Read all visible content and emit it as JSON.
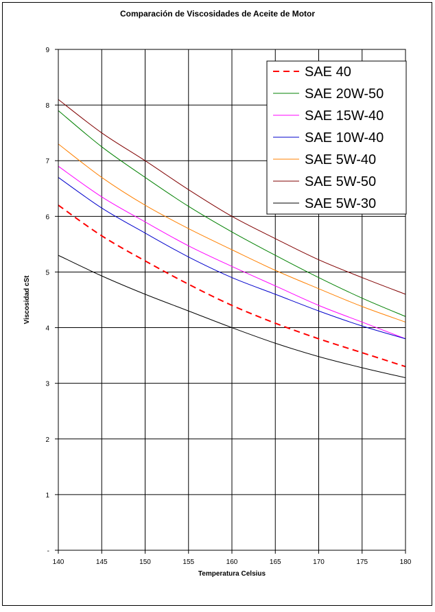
{
  "chart_data": {
    "type": "line",
    "title": "Comparación de Viscosidades de Aceite de Motor",
    "xlabel": "Temperatura Celsius",
    "ylabel": "Viscosidad cSt",
    "xlim": [
      140,
      180
    ],
    "ylim": [
      0,
      9
    ],
    "x_ticks": [
      "140",
      "145",
      "150",
      "155",
      "160",
      "165",
      "170",
      "175",
      "180"
    ],
    "y_ticks": [
      "-",
      "1",
      "2",
      "3",
      "4",
      "5",
      "6",
      "7",
      "8",
      "9"
    ],
    "grid": true,
    "legend_position": "top-right",
    "x": [
      140,
      145,
      150,
      155,
      160,
      165,
      170,
      175,
      180
    ],
    "series": [
      {
        "name": "SAE 40",
        "color": "#ff0000",
        "dashed": true,
        "values": [
          6.2,
          5.65,
          5.2,
          4.78,
          4.4,
          4.08,
          3.8,
          3.55,
          3.3
        ]
      },
      {
        "name": "SAE 20W-50",
        "color": "#008000",
        "dashed": false,
        "values": [
          7.9,
          7.25,
          6.7,
          6.18,
          5.72,
          5.3,
          4.9,
          4.53,
          4.2
        ]
      },
      {
        "name": "SAE 15W-40",
        "color": "#ff00ff",
        "dashed": false,
        "values": [
          6.9,
          6.35,
          5.9,
          5.47,
          5.1,
          4.75,
          4.4,
          4.1,
          3.8
        ]
      },
      {
        "name": "SAE 10W-40",
        "color": "#0000cc",
        "dashed": false,
        "values": [
          6.7,
          6.15,
          5.7,
          5.27,
          4.9,
          4.6,
          4.3,
          4.03,
          3.8
        ]
      },
      {
        "name": "SAE 5W-40",
        "color": "#ff8000",
        "dashed": false,
        "values": [
          7.3,
          6.7,
          6.2,
          5.78,
          5.4,
          5.03,
          4.7,
          4.38,
          4.1
        ]
      },
      {
        "name": "SAE 5W-50",
        "color": "#800000",
        "dashed": false,
        "values": [
          8.1,
          7.5,
          7.0,
          6.48,
          6.0,
          5.6,
          5.22,
          4.9,
          4.6
        ]
      },
      {
        "name": "SAE 5W-30",
        "color": "#000000",
        "dashed": false,
        "values": [
          5.3,
          4.93,
          4.6,
          4.3,
          4.0,
          3.72,
          3.48,
          3.28,
          3.1
        ]
      }
    ]
  }
}
